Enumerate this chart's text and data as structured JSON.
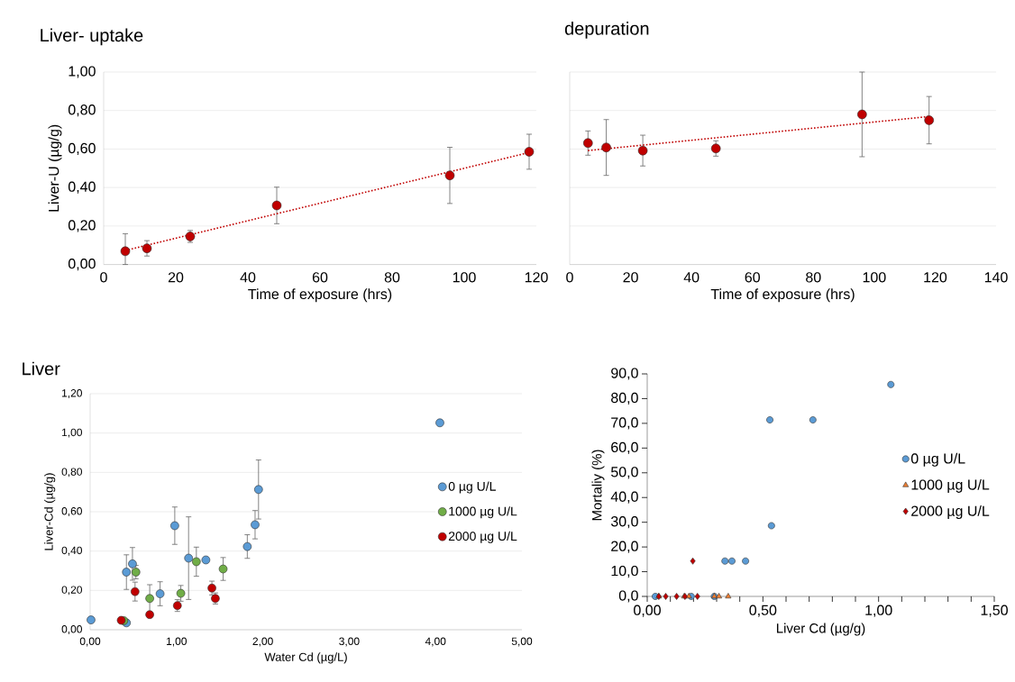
{
  "chart_data": [
    {
      "type": "scatter",
      "title": "Liver- uptake",
      "xlabel": "Time of exposure (hrs)",
      "ylabel": "Liver-U (µg/g)",
      "xlim": [
        0,
        120
      ],
      "xticks": [
        0,
        20,
        40,
        60,
        80,
        100,
        120
      ],
      "ylim": [
        0,
        1
      ],
      "yticks": [
        {
          "value": 0,
          "label": "0,00"
        },
        {
          "value": 0.2,
          "label": "0,20"
        },
        {
          "value": 0.4,
          "label": "0,40"
        },
        {
          "value": 0.6,
          "label": "0,60"
        },
        {
          "value": 0.8,
          "label": "0,80"
        },
        {
          "value": 1,
          "label": "1,00"
        }
      ],
      "grid": "y",
      "series": [
        {
          "color": "#c00000",
          "marker": "circle",
          "x": [
            6,
            12,
            24,
            48,
            96,
            118
          ],
          "values": [
            0.069,
            0.084,
            0.146,
            0.307,
            0.463,
            0.586
          ],
          "errors": [
            [
              0,
              0.16
            ],
            0.04,
            0.031,
            0.095,
            0.146,
            0.091
          ]
        },
        {
          "type": "line",
          "color": "#c00000",
          "line_style": "dotted",
          "x": [
            6,
            118
          ],
          "values": [
            0.073,
            0.582
          ]
        }
      ]
    },
    {
      "type": "scatter",
      "title": "depuration",
      "xlabel": "Time of exposure (hrs)",
      "xlim": [
        0,
        140
      ],
      "xticks": [
        0,
        20,
        40,
        60,
        80,
        100,
        120,
        140
      ],
      "ylim": [
        0,
        1
      ],
      "yticks": [
        {
          "value": 0,
          "label": null
        },
        {
          "value": 0.2,
          "label": null
        },
        {
          "value": 0.4,
          "label": null
        },
        {
          "value": 0.6,
          "label": null
        },
        {
          "value": 0.8,
          "label": null
        },
        {
          "value": 1,
          "label": null
        }
      ],
      "grid": "y",
      "tick_labels": "x",
      "series": [
        {
          "color": "#c00000",
          "marker": "circle",
          "x": [
            6,
            12,
            24,
            48,
            96,
            118
          ],
          "values": [
            0.631,
            0.608,
            0.592,
            0.603,
            0.78,
            0.75
          ],
          "errors": [
            0.063,
            0.145,
            0.08,
            0.04,
            0.22,
            0.123
          ]
        },
        {
          "type": "line",
          "color": "#c00000",
          "line_style": "dotted",
          "x": [
            6,
            118
          ],
          "values": [
            0.592,
            0.769
          ]
        }
      ]
    },
    {
      "type": "scatter",
      "title": "Liver",
      "xlabel": "Water Cd (µg/L)",
      "ylabel": "Liver-Cd (µg/g)",
      "xlim": [
        0,
        5
      ],
      "xticks": [
        {
          "value": 0,
          "label": "0,00"
        },
        {
          "value": 1,
          "label": "1,00"
        },
        {
          "value": 2,
          "label": "2,00"
        },
        {
          "value": 3,
          "label": "3,00"
        },
        {
          "value": 4,
          "label": "4,00"
        },
        {
          "value": 5,
          "label": "5,00"
        }
      ],
      "ylim": [
        0,
        1.2
      ],
      "yticks": [
        {
          "value": 0,
          "label": "0,00"
        },
        {
          "value": 0.2,
          "label": "0,20"
        },
        {
          "value": 0.4,
          "label": "0,40"
        },
        {
          "value": 0.6,
          "label": "0,60"
        },
        {
          "value": 0.8,
          "label": "0,80"
        },
        {
          "value": 1,
          "label": "1,00"
        },
        {
          "value": 1.2,
          "label": "1,20"
        }
      ],
      "grid": "y",
      "legend": "right",
      "series": [
        {
          "name": "0 µg U/L",
          "color": "#5b9bd5",
          "marker": "circle",
          "x": [
            0.01,
            0.42,
            0.42,
            0.49,
            0.98,
            1.14,
            0.81,
            1.34,
            1.82,
            1.91,
            1.95,
            4.05
          ],
          "values": [
            0.05,
            0.035,
            0.293,
            0.335,
            0.529,
            0.364,
            0.183,
            0.355,
            0.423,
            0.534,
            0.713,
            1.052
          ],
          "errors": [
            null,
            null,
            0.088,
            0.083,
            0.095,
            0.21,
            0.061,
            null,
            0.06,
            0.072,
            0.15,
            null
          ]
        },
        {
          "name": "1000 µg U/L",
          "color": "#70ad47",
          "marker": "circle",
          "x": [
            0.39,
            0.53,
            0.69,
            1.05,
            1.23,
            1.54
          ],
          "values": [
            0.046,
            0.293,
            0.159,
            0.185,
            0.346,
            0.309
          ],
          "errors": [
            null,
            0.034,
            0.07,
            0.04,
            0.074,
            0.058
          ]
        },
        {
          "name": "2000 µg U/L",
          "color": "#c00000",
          "marker": "circle",
          "x": [
            0.36,
            0.52,
            0.69,
            1.01,
            1.41,
            1.45
          ],
          "values": [
            0.048,
            0.194,
            0.077,
            0.123,
            0.212,
            0.159
          ],
          "errors": [
            null,
            0.048,
            null,
            0.03,
            0.035,
            0.028
          ]
        }
      ]
    },
    {
      "type": "scatter",
      "xlabel": "Liver Cd (µg/g)",
      "ylabel": "Mortaliy (%)",
      "xlim": [
        0,
        1.5
      ],
      "xticks": [
        {
          "value": 0,
          "label": "0,00"
        },
        {
          "value": 0.1,
          "label": null
        },
        {
          "value": 0.2,
          "label": null
        },
        {
          "value": 0.3,
          "label": null
        },
        {
          "value": 0.4,
          "label": null
        },
        {
          "value": 0.5,
          "label": "0,50"
        },
        {
          "value": 0.6,
          "label": null
        },
        {
          "value": 0.7,
          "label": null
        },
        {
          "value": 0.8,
          "label": null
        },
        {
          "value": 0.9,
          "label": null
        },
        {
          "value": 1,
          "label": "1,00"
        },
        {
          "value": 1.1,
          "label": null
        },
        {
          "value": 1.2,
          "label": null
        },
        {
          "value": 1.3,
          "label": null
        },
        {
          "value": 1.4,
          "label": null
        },
        {
          "value": 1.5,
          "label": "1,50"
        }
      ],
      "ylim": [
        0,
        90
      ],
      "yticks": [
        {
          "value": 0,
          "label": "0,0"
        },
        {
          "value": 10,
          "label": "10,0"
        },
        {
          "value": 20,
          "label": "20,0"
        },
        {
          "value": 30,
          "label": "30,0"
        },
        {
          "value": 40,
          "label": "40,0"
        },
        {
          "value": 50,
          "label": "50,0"
        },
        {
          "value": 60,
          "label": "60,0"
        },
        {
          "value": 70,
          "label": "70,0"
        },
        {
          "value": 80,
          "label": "80,0"
        },
        {
          "value": 90,
          "label": "90,0"
        }
      ],
      "legend": "right",
      "series": [
        {
          "name": "0 µg U/L",
          "color": "#5b9bd5",
          "marker": "circle",
          "x": [
            1.053,
            0.53,
            0.716,
            0.537,
            0.336,
            0.366,
            0.425,
            0.035,
            0.19,
            0.29
          ],
          "values": [
            85.7,
            71.4,
            71.4,
            28.6,
            14.3,
            14.3,
            14.3,
            0,
            0,
            0
          ]
        },
        {
          "name": "1000 µg U/L",
          "color": "#ed7d31",
          "marker": "triangle",
          "x": [
            0.05,
            0.16,
            0.18,
            0.29,
            0.31,
            0.35
          ],
          "values": [
            0,
            0,
            0,
            0,
            0,
            0
          ]
        },
        {
          "name": "2000 µg U/L",
          "color": "#c00000",
          "marker": "diamond",
          "x": [
            0.197,
            0.05,
            0.08,
            0.127,
            0.163,
            0.217
          ],
          "values": [
            14.3,
            0,
            0,
            0,
            0,
            0
          ]
        }
      ]
    }
  ]
}
